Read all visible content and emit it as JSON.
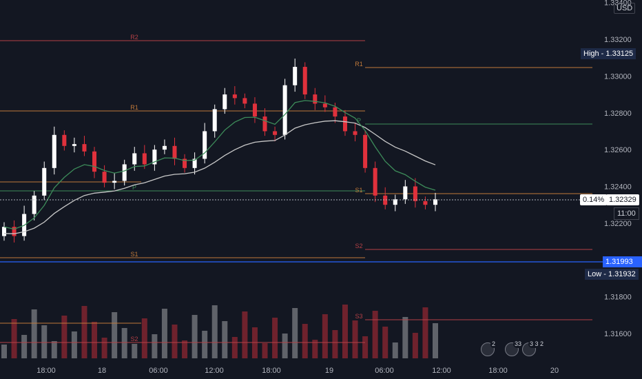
{
  "price_axis": {
    "labels": [
      "1.33400",
      "1.33200",
      "1.33000",
      "1.32800",
      "1.32600",
      "1.32400",
      "1.32200",
      "1.31800",
      "1.31600"
    ],
    "currency": "USD"
  },
  "time_axis": {
    "labels": [
      "18:00",
      "18",
      "06:00",
      "12:00",
      "18:00",
      "19",
      "06:00",
      "12:00",
      "18:00",
      "20"
    ]
  },
  "tags": {
    "high": "High - 1.33125",
    "last_change": "0.14%",
    "last_price": "1.32329",
    "countdown": "11:00",
    "blue_line": "1.31993",
    "low": "Low - 1.31932"
  },
  "pivots": {
    "left": [
      "R2",
      "R1",
      "P",
      "S1",
      "S2"
    ],
    "right": [
      "R1",
      "P",
      "S1",
      "S2",
      "S3"
    ]
  },
  "events": {
    "counts": [
      "2",
      "33",
      "3 3 2"
    ]
  },
  "colors": {
    "up": "#ffffff",
    "down": "#e0313c",
    "ma_fast": "#3d8c5a",
    "ma_slow": "#c9c9c9",
    "blue": "#2962ff"
  },
  "chart_data": {
    "type": "candlestick",
    "series": [
      {
        "name": "",
        "values": [
          1.3218,
          1.3213,
          1.3225,
          1.3235,
          1.325,
          1.3268,
          1.3262,
          1.3263,
          1.3259,
          1.3248,
          1.3242,
          1.3243,
          1.3252,
          1.3258,
          1.3252,
          1.326,
          1.3262,
          1.3255,
          1.325,
          1.3255,
          1.327,
          1.3282,
          1.329,
          1.3288,
          1.3285,
          1.3278,
          1.327,
          1.3268,
          1.3295,
          1.3305,
          1.329,
          1.3285,
          1.3283,
          1.3278,
          1.327,
          1.3268,
          1.325,
          1.3235,
          1.323,
          1.3233,
          1.324,
          1.3232,
          1.323,
          1.3233
        ]
      }
    ],
    "ylim": [
      1.315,
      1.334
    ]
  }
}
